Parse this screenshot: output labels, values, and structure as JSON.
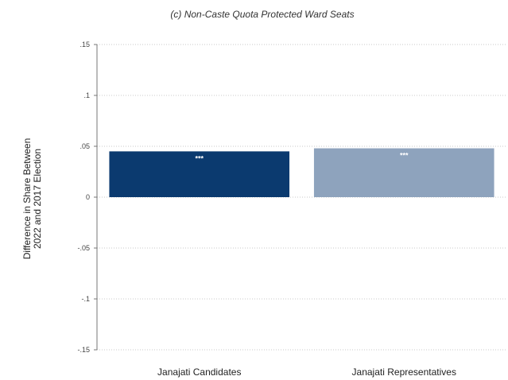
{
  "chart_data": {
    "type": "bar",
    "title": "(c)  Non-Caste Quota Protected Ward Seats",
    "ylabel_lines": [
      "Difference in Share Between",
      "2022 and 2017 Election"
    ],
    "xlabel": "",
    "categories": [
      "Janajati Candidates",
      "Janajati Representatives"
    ],
    "values": [
      0.045,
      0.048
    ],
    "data_labels": [
      "***",
      "***"
    ],
    "bar_colors": [
      "#0b3a6f",
      "#8ea3bd"
    ],
    "ylim": [
      -0.15,
      0.15
    ],
    "yticks": [
      0.15,
      0.1,
      0.05,
      0,
      -0.05,
      -0.1,
      -0.15
    ],
    "ytick_labels": [
      ".15",
      ".1",
      ".05",
      "0",
      "-.05",
      "-.1",
      "-.15"
    ],
    "grid": true,
    "legend": "none"
  }
}
